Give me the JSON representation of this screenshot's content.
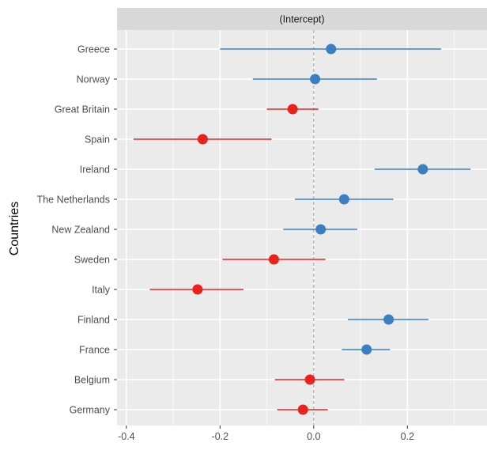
{
  "chart_data": {
    "type": "forest-plot",
    "facet_label": "(Intercept)",
    "ylabel": "Countries",
    "xlabel": "",
    "xlim": [
      -0.42,
      0.37
    ],
    "x_ticks": [
      -0.4,
      -0.2,
      0.0,
      0.2
    ],
    "x_tick_labels": [
      "-0.4",
      "-0.2",
      "0.0",
      "0.2"
    ],
    "reference_line": 0,
    "grid": true,
    "colors": {
      "positive": "#3a7fc1",
      "negative": "#e8231e",
      "panel": "#ebebeb",
      "strip": "#d9d9d9",
      "grid": "#ffffff"
    },
    "countries": [
      {
        "name": "Greece",
        "estimate": 0.037,
        "lower": -0.2,
        "upper": 0.272,
        "sign": "positive"
      },
      {
        "name": "Norway",
        "estimate": 0.003,
        "lower": -0.13,
        "upper": 0.135,
        "sign": "positive"
      },
      {
        "name": "Great Britain",
        "estimate": -0.045,
        "lower": -0.1,
        "upper": 0.01,
        "sign": "negative"
      },
      {
        "name": "Spain",
        "estimate": -0.237,
        "lower": -0.385,
        "upper": -0.09,
        "sign": "negative"
      },
      {
        "name": "Ireland",
        "estimate": 0.233,
        "lower": 0.13,
        "upper": 0.335,
        "sign": "positive"
      },
      {
        "name": "The Netherlands",
        "estimate": 0.065,
        "lower": -0.04,
        "upper": 0.17,
        "sign": "positive"
      },
      {
        "name": "New Zealand",
        "estimate": 0.015,
        "lower": -0.065,
        "upper": 0.093,
        "sign": "positive"
      },
      {
        "name": "Sweden",
        "estimate": -0.085,
        "lower": -0.195,
        "upper": 0.025,
        "sign": "negative"
      },
      {
        "name": "Italy",
        "estimate": -0.248,
        "lower": -0.35,
        "upper": -0.15,
        "sign": "negative"
      },
      {
        "name": "Finland",
        "estimate": 0.16,
        "lower": 0.073,
        "upper": 0.245,
        "sign": "positive"
      },
      {
        "name": "France",
        "estimate": 0.113,
        "lower": 0.06,
        "upper": 0.163,
        "sign": "positive"
      },
      {
        "name": "Belgium",
        "estimate": -0.008,
        "lower": -0.083,
        "upper": 0.065,
        "sign": "negative"
      },
      {
        "name": "Germany",
        "estimate": -0.023,
        "lower": -0.078,
        "upper": 0.03,
        "sign": "negative"
      }
    ]
  }
}
